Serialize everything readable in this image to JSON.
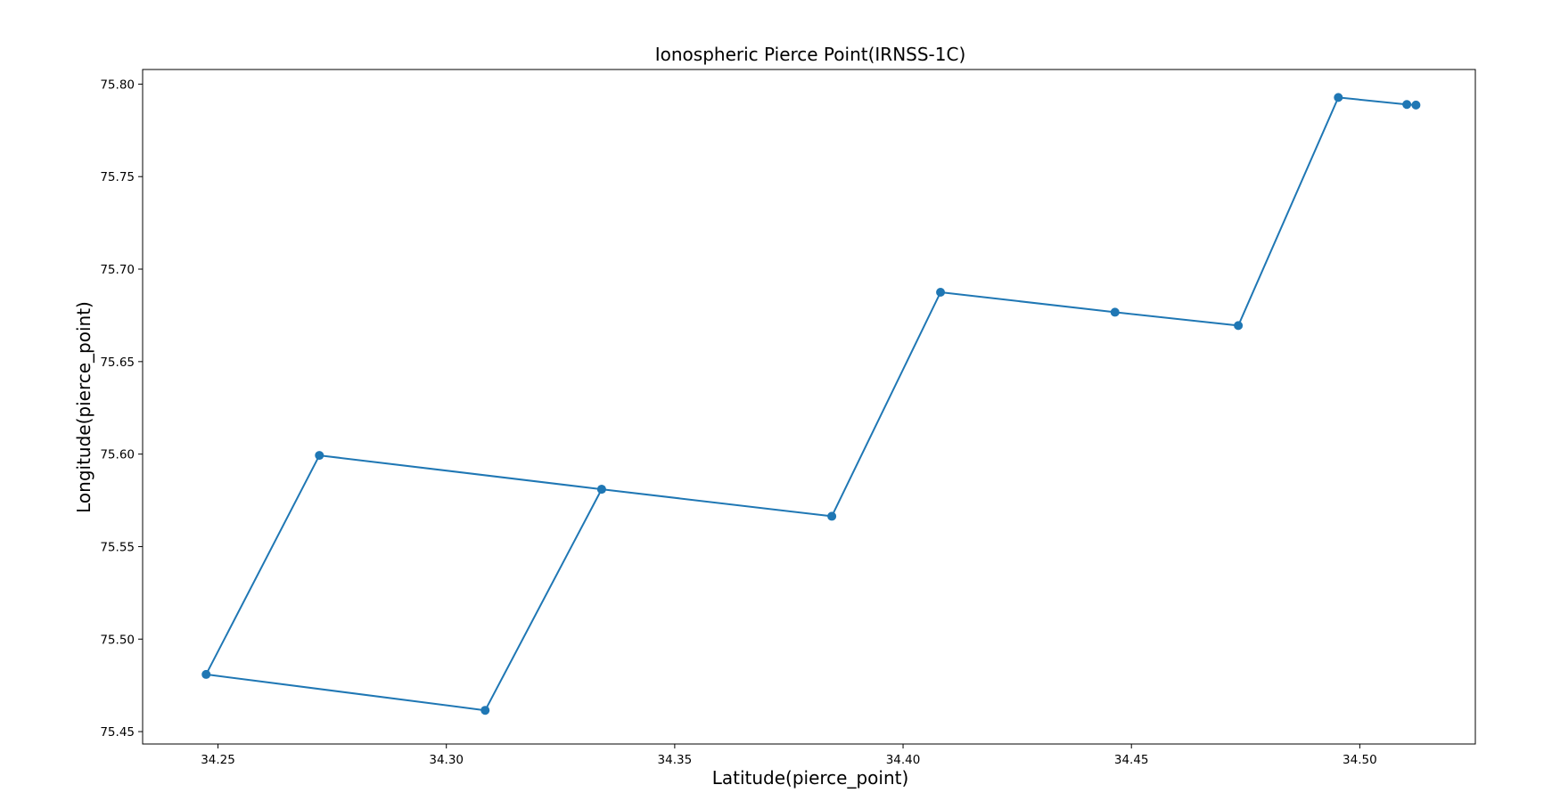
{
  "chart_data": {
    "type": "line",
    "title": "Ionospheric Pierce Point(IRNSS-1C)",
    "xlabel": "Latitude(pierce_point)",
    "ylabel": "Longitude(pierce_point)",
    "xlim": [
      34.2335,
      34.5253
    ],
    "ylim": [
      75.4433,
      75.8079
    ],
    "xticks": [
      "34.25",
      "34.30",
      "34.35",
      "34.40",
      "34.45",
      "34.50"
    ],
    "yticks": [
      "75.45",
      "75.50",
      "75.55",
      "75.60",
      "75.65",
      "75.70",
      "75.75",
      "75.80"
    ],
    "grid": false,
    "series": [
      {
        "color": "#1f77b4",
        "marker": "circle",
        "points": [
          {
            "x": 34.5123,
            "y": 75.7887
          },
          {
            "x": 34.5103,
            "y": 75.789
          },
          {
            "x": 34.4953,
            "y": 75.7928
          },
          {
            "x": 34.4734,
            "y": 75.6695
          },
          {
            "x": 34.4464,
            "y": 75.6767
          },
          {
            "x": 34.4082,
            "y": 75.6875
          },
          {
            "x": 34.3844,
            "y": 75.5664
          },
          {
            "x": 34.334,
            "y": 75.581
          },
          {
            "x": 34.2722,
            "y": 75.5993
          },
          {
            "x": 34.2474,
            "y": 75.4809
          },
          {
            "x": 34.3085,
            "y": 75.4615
          },
          {
            "x": 34.334,
            "y": 75.581
          }
        ]
      }
    ]
  }
}
